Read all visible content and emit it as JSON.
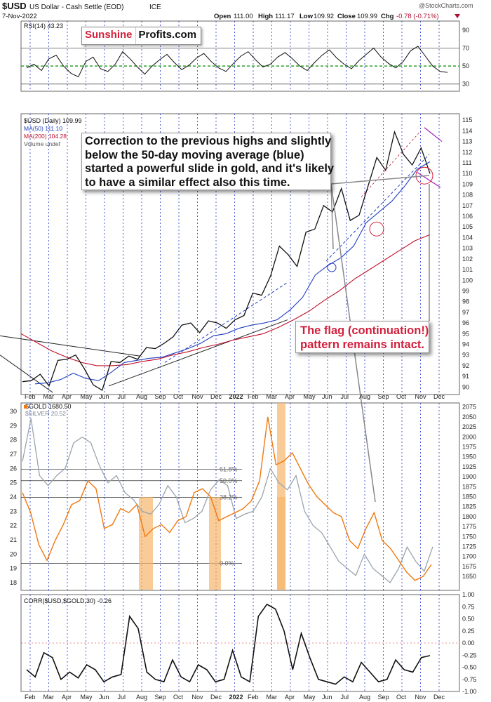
{
  "header": {
    "symbol": "$USD",
    "name": "US Dollar - Cash Settle (EOD)",
    "exchange": "ICE",
    "date": "7-Nov-2022",
    "open_label": "Open",
    "open": "111.00",
    "high_label": "High",
    "high": "111.17",
    "low_label": "Low",
    "low": "109.92",
    "close_label": "Close",
    "close": "109.99",
    "chg_label": "Chg",
    "chg": "-0.78 (-0.71%)",
    "watermark": "@StockCharts.com"
  },
  "logo": {
    "part1": "Sunshine",
    "part2": "Profits.com"
  },
  "annotations": {
    "main_lines": [
      "Correction to the previous highs and slightly",
      "below the 50-day moving average (blue)",
      "started a powerful slide in gold, and it's likely",
      "to have a similar effect also this time."
    ],
    "flag_lines": [
      "The flag (continuation!)",
      "pattern remains intact."
    ]
  },
  "colors": {
    "price": "#111111",
    "ma50": "#1f3fbf",
    "ma200": "#c0102a",
    "rsi": "#111111",
    "rsi_signal": "#1a9a1a",
    "gold": "#f07810",
    "silver": "#9aa4ac",
    "highlight": "#f7b56a",
    "grid_blue": "#2233cc",
    "annotation_red": "#d21f3c"
  },
  "chart_data": [
    {
      "panel": "rsi",
      "type": "line",
      "legend": "RSI(14) 43.23",
      "y_ticks": [
        30,
        50,
        70,
        90
      ],
      "ylim": [
        22,
        100
      ],
      "reference_lines": [
        30,
        50,
        70
      ],
      "series": [
        {
          "name": "RSI(14)",
          "values": [
            48,
            52,
            45,
            58,
            62,
            50,
            42,
            38,
            55,
            60,
            47,
            44,
            52,
            66,
            58,
            49,
            41,
            50,
            57,
            63,
            54,
            46,
            51,
            59,
            64,
            55,
            48,
            44,
            53,
            61,
            66,
            57,
            49,
            52,
            60,
            65,
            58,
            50,
            45,
            54,
            62,
            68,
            59,
            52,
            47,
            56,
            63,
            70,
            60,
            53,
            48,
            55,
            67,
            72,
            61,
            50,
            44,
            43
          ]
        }
      ]
    },
    {
      "panel": "usd",
      "type": "line",
      "title": "$USD (Daily) 109.99",
      "legend": [
        "$USD (Daily) 109.99",
        "MA(50) 111.10",
        "MA(200) 104.28",
        "Volume undef"
      ],
      "y_ticks": [
        90,
        91,
        92,
        93,
        94,
        95,
        96,
        97,
        98,
        99,
        100,
        101,
        102,
        103,
        104,
        105,
        106,
        107,
        108,
        109,
        110,
        111,
        112,
        113,
        114,
        115
      ],
      "ylim": [
        89.3,
        115.6
      ],
      "x_labels": [
        "Feb",
        "Mar",
        "Apr",
        "May",
        "Jun",
        "Jul",
        "Aug",
        "Sep",
        "Oct",
        "Nov",
        "Dec",
        "2022",
        "Feb",
        "Mar",
        "Apr",
        "May",
        "Jun",
        "Jul",
        "Aug",
        "Sep",
        "Oct",
        "Nov",
        "Dec"
      ],
      "series": [
        {
          "name": "$USD",
          "values": [
            90.5,
            90.6,
            91.2,
            90.1,
            92.5,
            92.6,
            93.0,
            91.7,
            90.2,
            89.7,
            92.4,
            92.3,
            92.9,
            92.6,
            93.7,
            93.6,
            94.1,
            94.7,
            95.8,
            96.0,
            95.1,
            96.2,
            96.0,
            95.5,
            96.3,
            96.7,
            98.8,
            98.6,
            100.4,
            103.2,
            102.4,
            101.3,
            104.5,
            104.8,
            107.0,
            106.4,
            108.6,
            105.6,
            106.1,
            108.8,
            111.5,
            110.3,
            113.9,
            111.8,
            110.8,
            112.4,
            110.0
          ]
        },
        {
          "name": "MA(50)",
          "values": [
            90.3,
            90.4,
            90.7,
            91.3,
            90.8,
            90.6,
            91.4,
            92.3,
            92.5,
            92.7,
            92.8,
            93.2,
            93.6,
            94.1,
            94.8,
            95.0,
            95.5,
            95.8,
            96.0,
            96.3,
            97.2,
            98.4,
            100.5,
            101.4,
            102.1,
            103.2,
            105.4,
            106.4,
            107.4,
            108.8,
            110.4,
            111.1
          ]
        },
        {
          "name": "MA(200)",
          "values": [
            95.0,
            94.2,
            93.4,
            92.8,
            92.3,
            92.0,
            92.0,
            92.1,
            92.4,
            92.6,
            93.0,
            93.3,
            93.7,
            94.0,
            94.4,
            94.7,
            95.0,
            95.6,
            96.3,
            97.1,
            98.1,
            99.0,
            100.1,
            101.0,
            101.9,
            102.8,
            103.7,
            104.28
          ]
        }
      ]
    },
    {
      "panel": "gold",
      "type": "line",
      "legend": [
        "$GOLD 1680.50",
        "$SILVER 20.52"
      ],
      "y_ticks_left": [
        18,
        19,
        20,
        21,
        22,
        23,
        24,
        25,
        26,
        27,
        28,
        29,
        30
      ],
      "y_ticks_right": [
        1650,
        1675,
        1700,
        1725,
        1750,
        1775,
        1800,
        1825,
        1850,
        1875,
        1900,
        1925,
        1950,
        1975,
        2000,
        2025,
        2050,
        2075
      ],
      "ylim_right": [
        1615,
        2085
      ],
      "fib_levels": [
        {
          "label": "61.8%",
          "value": 1919
        },
        {
          "label": "50.0%",
          "value": 1890
        },
        {
          "label": "38.2%",
          "value": 1848
        },
        {
          "label": "0.0%",
          "value": 1683
        }
      ],
      "series": [
        {
          "name": "$GOLD",
          "values": [
            1860,
            1810,
            1730,
            1690,
            1740,
            1780,
            1830,
            1840,
            1890,
            1870,
            1770,
            1780,
            1820,
            1810,
            1830,
            1750,
            1770,
            1780,
            1760,
            1790,
            1800,
            1860,
            1870,
            1850,
            1790,
            1800,
            1810,
            1820,
            1840,
            1890,
            2050,
            1930,
            1940,
            1960,
            1920,
            1880,
            1850,
            1830,
            1810,
            1800,
            1740,
            1720,
            1770,
            1810,
            1740,
            1720,
            1690,
            1660,
            1640,
            1650,
            1680
          ]
        },
        {
          "name": "$SILVER",
          "values": [
            26.5,
            29.5,
            25.5,
            24.8,
            25.5,
            26.0,
            27.8,
            28.2,
            27.8,
            26.2,
            25.0,
            25.5,
            24.3,
            23.8,
            23.0,
            22.8,
            23.5,
            24.8,
            24.0,
            22.2,
            22.5,
            23.0,
            24.5,
            25.2,
            24.8,
            22.5,
            22.8,
            23.0,
            24.0,
            26.0,
            25.0,
            24.5,
            25.5,
            23.0,
            22.0,
            21.5,
            20.5,
            19.5,
            19.0,
            18.5,
            20.0,
            19.0,
            18.5,
            18.0,
            19.0,
            20.5,
            19.5,
            18.8,
            20.52
          ]
        }
      ]
    },
    {
      "panel": "corr",
      "type": "line",
      "legend": "CORR($USD,$GOLD,30) -0.26",
      "y_ticks": [
        "1.00",
        "0.75",
        "0.50",
        "0.25",
        "0.00",
        "-0.25",
        "-0.50",
        "-0.75",
        "-1.00"
      ],
      "ylim": [
        -1.0,
        1.0
      ],
      "series": [
        {
          "name": "CORR($USD,$GOLD,30)",
          "values": [
            -0.55,
            -0.7,
            -0.2,
            -0.3,
            -0.75,
            -0.6,
            -0.72,
            -0.45,
            -0.55,
            -0.8,
            -0.7,
            -0.65,
            0.55,
            0.3,
            -0.6,
            -0.75,
            -0.8,
            -0.35,
            -0.7,
            -0.8,
            -0.45,
            -0.55,
            -0.8,
            -0.75,
            -0.15,
            -0.7,
            -0.8,
            0.55,
            0.8,
            0.7,
            0.25,
            -0.55,
            0.2,
            -0.3,
            -0.75,
            -0.8,
            -0.85,
            -0.7,
            -0.8,
            -0.4,
            -0.6,
            -0.8,
            -0.75,
            -0.35,
            -0.55,
            -0.6,
            -0.3,
            -0.26
          ]
        }
      ]
    }
  ]
}
